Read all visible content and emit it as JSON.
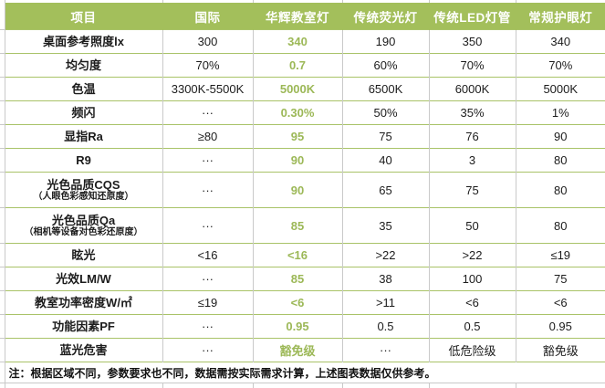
{
  "colors": {
    "header_bg": "#a3bf5b",
    "header_text": "#ffffff",
    "highlight_text": "#9cb857",
    "row_border_green": "#a9c368",
    "gridline_grey": "#c9c9c9",
    "body_text": "#1c1c1c"
  },
  "table": {
    "columns": [
      "项目",
      "国际",
      "华辉教室灯",
      "传统荧光灯",
      "传统LED灯管",
      "常规护眼灯"
    ],
    "highlight_column": "华辉教室灯",
    "rows": [
      {
        "label": "桌面参考照度lx",
        "values": [
          "300",
          "340",
          "190",
          "350",
          "340"
        ]
      },
      {
        "label": "均匀度",
        "values": [
          "70%",
          "0.7",
          "60%",
          "70%",
          "70%"
        ]
      },
      {
        "label": "色温",
        "values": [
          "3300K-5500K",
          "5000K",
          "6500K",
          "6000K",
          "5000K"
        ]
      },
      {
        "label": "频闪",
        "values": [
          "···",
          "0.30%",
          "50%",
          "35%",
          "1%"
        ]
      },
      {
        "label": "显指Ra",
        "values": [
          "≥80",
          "95",
          "75",
          "76",
          "90"
        ]
      },
      {
        "label": "R9",
        "values": [
          "···",
          "90",
          "40",
          "3",
          "80"
        ]
      },
      {
        "label": "光色品质CQS",
        "sublabel": "（人眼色彩感知还原度）",
        "values": [
          "···",
          "90",
          "65",
          "75",
          "80"
        ]
      },
      {
        "label": "光色品质Qa",
        "sublabel": "（相机等设备对色彩还原度）",
        "values": [
          "···",
          "85",
          "35",
          "50",
          "80"
        ]
      },
      {
        "label": "眩光",
        "values": [
          "<16",
          "<16",
          ">22",
          ">22",
          "≤19"
        ]
      },
      {
        "label": "光效LM/W",
        "values": [
          "···",
          "85",
          "38",
          "100",
          "75"
        ]
      },
      {
        "label": "教室功率密度W/㎡",
        "values": [
          "≤19",
          "<6",
          ">11",
          "<6",
          "<6"
        ]
      },
      {
        "label": "功能因素PF",
        "values": [
          "···",
          "0.95",
          "0.5",
          "0.5",
          "0.95"
        ]
      },
      {
        "label": "蓝光危害",
        "values": [
          "···",
          "豁免级",
          "···",
          "低危险级",
          "豁免级"
        ]
      }
    ]
  },
  "note": "注：根据区域不同，参数要求也不同，数据需按实际需求计算，上述图表数据仅供参考。"
}
